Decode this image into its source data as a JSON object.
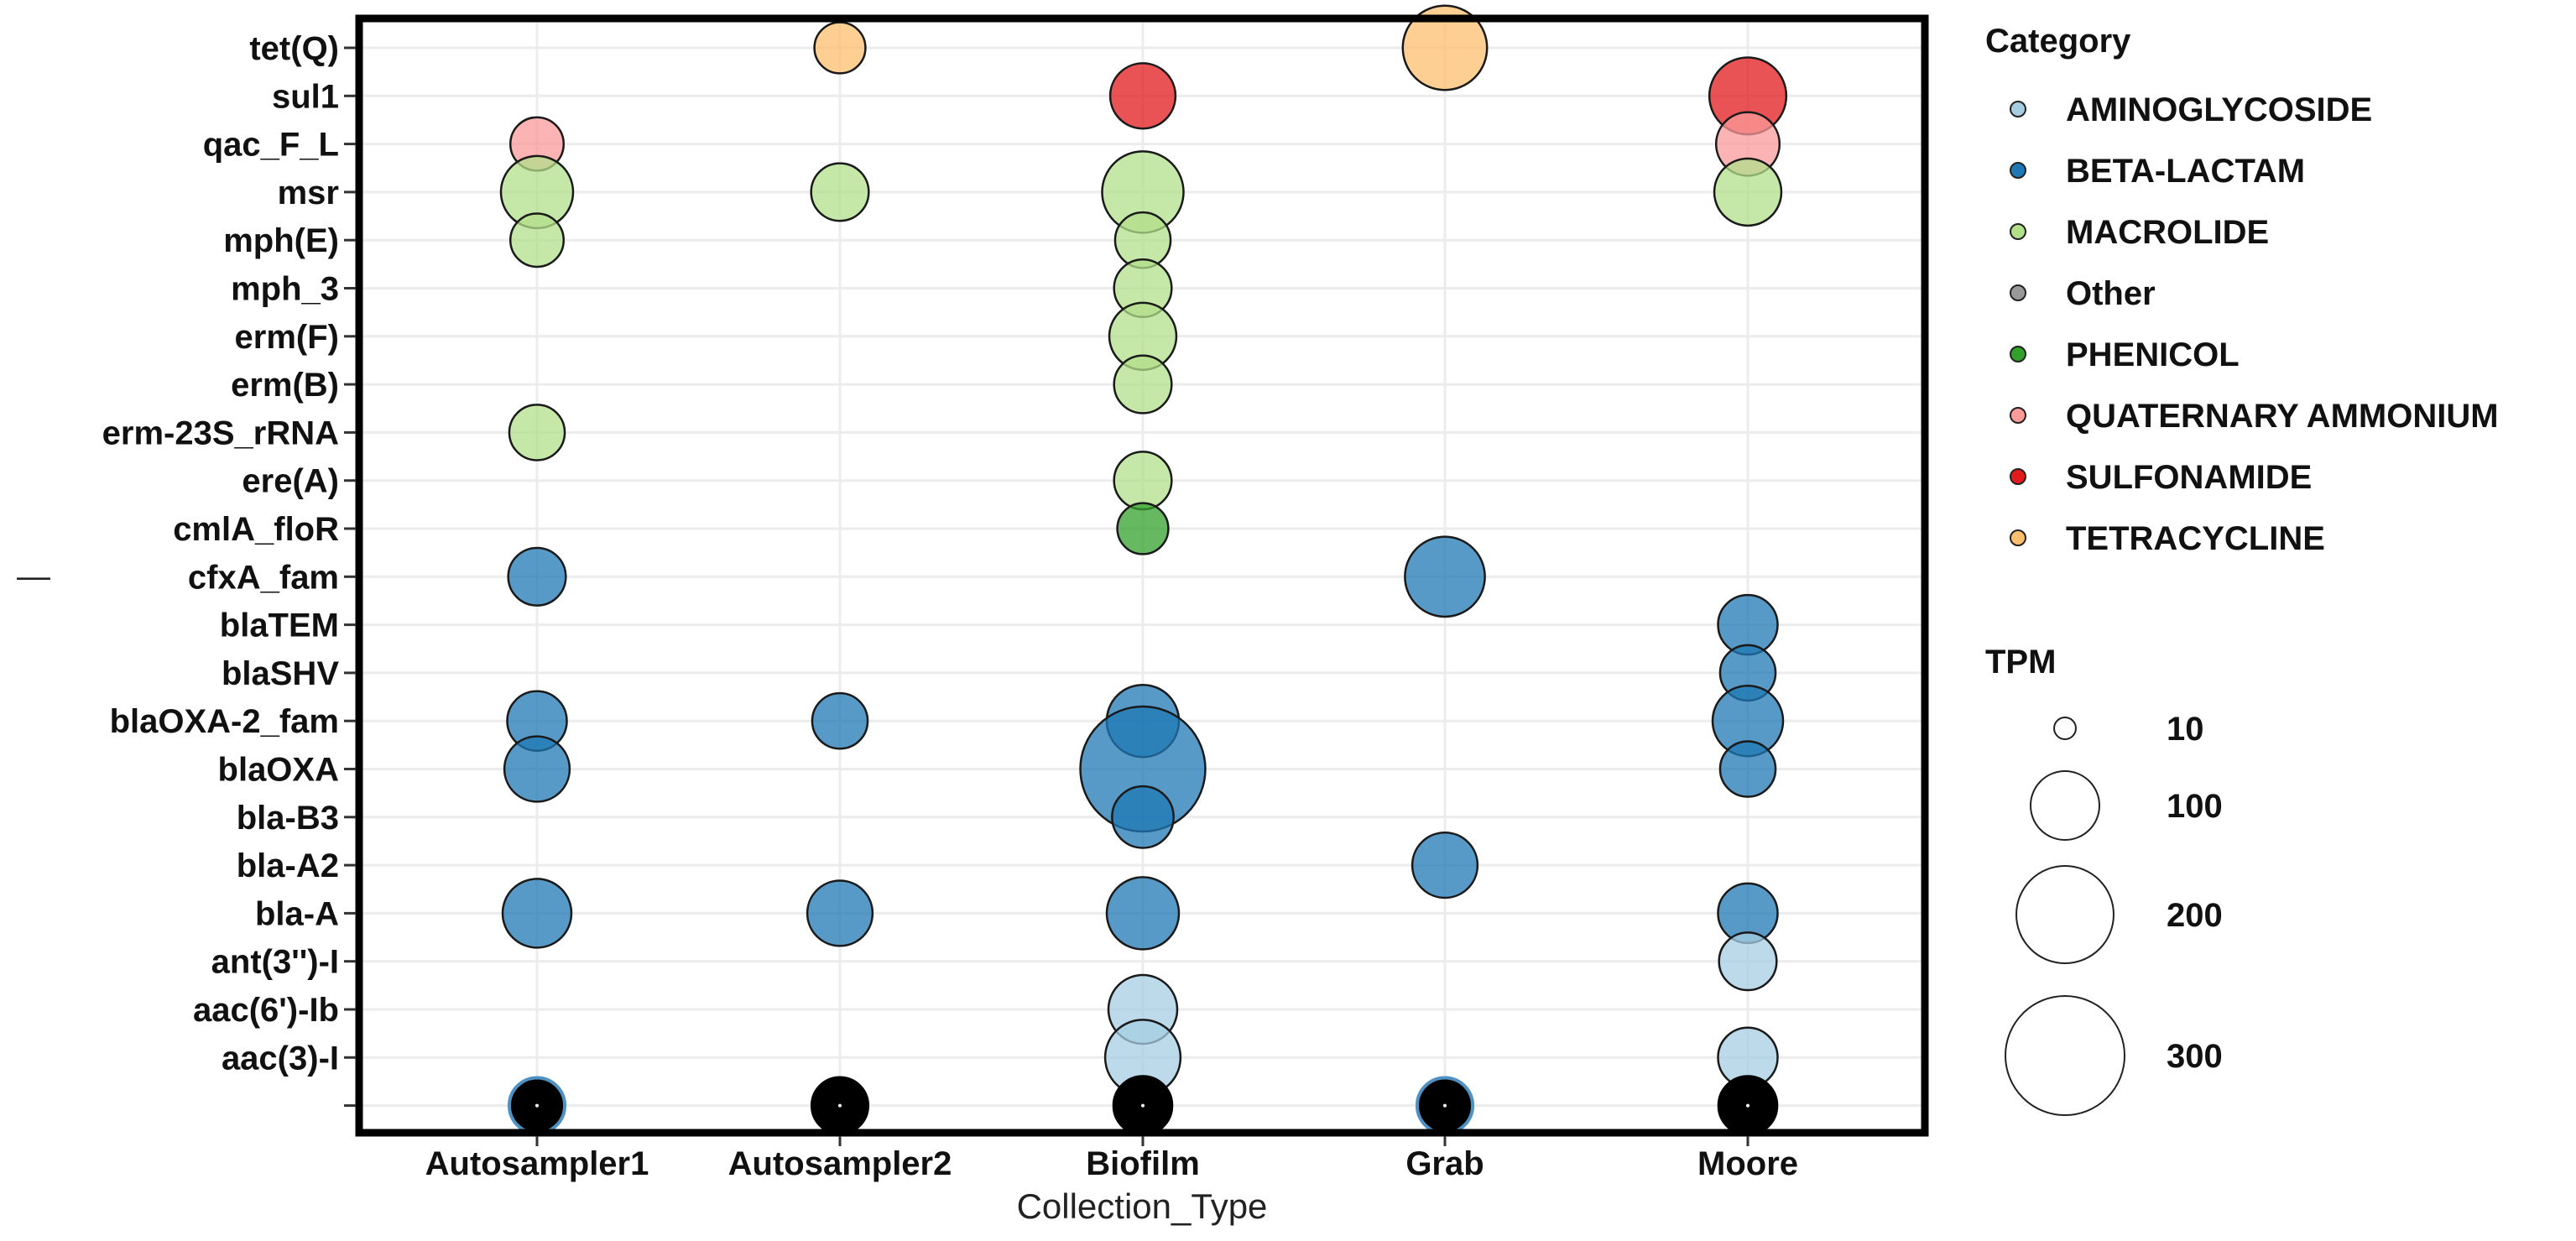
{
  "chart_data": {
    "type": "scatter",
    "subtype": "bubble",
    "xlabel": "Collection_Type",
    "ylabel": "",
    "ylabel_glyph": "—",
    "x_categories": [
      "Autosampler1",
      "Autosampler2",
      "Biofilm",
      "Grab",
      "Moore"
    ],
    "y_categories": [
      "",
      "aac(3)-I",
      "aac(6')-Ib",
      "ant(3'')-I",
      "bla-A",
      "bla-A2",
      "bla-B3",
      "blaOXA",
      "blaOXA-2_fam",
      "blaSHV",
      "blaTEM",
      "cfxA_fam",
      "cmlA_floR",
      "ere(A)",
      "erm-23S_rRNA",
      "erm(B)",
      "erm(F)",
      "mph_3",
      "mph(E)",
      "msr",
      "qac_F_L",
      "sul1",
      "tet(Q)"
    ],
    "colors": {
      "AMINOGLYCOSIDE": "#A6CEE3",
      "BETA-LACTAM": "#1F78B4",
      "MACROLIDE": "#B2DF8A",
      "Other": "#999999",
      "PHENICOL": "#33A02C",
      "QUATERNARY AMMONIUM": "#FB9A99",
      "SULFONAMIDE": "#E31A1C",
      "TETRACYCLINE": "#FDBF6F"
    },
    "grid": true,
    "legend_position": "right",
    "legend": {
      "category_title": "Category",
      "category_entries": [
        "AMINOGLYCOSIDE",
        "BETA-LACTAM",
        "MACROLIDE",
        "Other",
        "PHENICOL",
        "QUATERNARY AMMONIUM",
        "SULFONAMIDE",
        "TETRACYCLINE"
      ],
      "size_title": "TPM",
      "size_entries": [
        10,
        100,
        200,
        300
      ]
    },
    "points": [
      {
        "x": "Autosampler2",
        "y": "tet(Q)",
        "category": "TETRACYCLINE",
        "tpm": 55
      },
      {
        "x": "Grab",
        "y": "tet(Q)",
        "category": "TETRACYCLINE",
        "tpm": 150
      },
      {
        "x": "Biofilm",
        "y": "sul1",
        "category": "SULFONAMIDE",
        "tpm": 90
      },
      {
        "x": "Moore",
        "y": "sul1",
        "category": "SULFONAMIDE",
        "tpm": 125
      },
      {
        "x": "Autosampler1",
        "y": "qac_F_L",
        "category": "QUATERNARY AMMONIUM",
        "tpm": 60
      },
      {
        "x": "Moore",
        "y": "qac_F_L",
        "category": "QUATERNARY AMMONIUM",
        "tpm": 85
      },
      {
        "x": "Autosampler1",
        "y": "msr",
        "category": "MACROLIDE",
        "tpm": 110
      },
      {
        "x": "Autosampler2",
        "y": "msr",
        "category": "MACROLIDE",
        "tpm": 70
      },
      {
        "x": "Biofilm",
        "y": "msr",
        "category": "MACROLIDE",
        "tpm": 140
      },
      {
        "x": "Moore",
        "y": "msr",
        "category": "MACROLIDE",
        "tpm": 95
      },
      {
        "x": "Autosampler1",
        "y": "mph(E)",
        "category": "MACROLIDE",
        "tpm": 60
      },
      {
        "x": "Biofilm",
        "y": "mph(E)",
        "category": "MACROLIDE",
        "tpm": 65
      },
      {
        "x": "Biofilm",
        "y": "mph_3",
        "category": "MACROLIDE",
        "tpm": 70
      },
      {
        "x": "Biofilm",
        "y": "erm(F)",
        "category": "MACROLIDE",
        "tpm": 95
      },
      {
        "x": "Biofilm",
        "y": "erm(B)",
        "category": "MACROLIDE",
        "tpm": 70
      },
      {
        "x": "Autosampler1",
        "y": "erm-23S_rRNA",
        "category": "MACROLIDE",
        "tpm": 65
      },
      {
        "x": "Biofilm",
        "y": "ere(A)",
        "category": "MACROLIDE",
        "tpm": 70
      },
      {
        "x": "Biofilm",
        "y": "cmlA_floR",
        "category": "PHENICOL",
        "tpm": 55
      },
      {
        "x": "Autosampler1",
        "y": "cfxA_fam",
        "category": "BETA-LACTAM",
        "tpm": 70
      },
      {
        "x": "Grab",
        "y": "cfxA_fam",
        "category": "BETA-LACTAM",
        "tpm": 135
      },
      {
        "x": "Moore",
        "y": "blaTEM",
        "category": "BETA-LACTAM",
        "tpm": 75
      },
      {
        "x": "Moore",
        "y": "blaSHV",
        "category": "BETA-LACTAM",
        "tpm": 65
      },
      {
        "x": "Autosampler1",
        "y": "blaOXA-2_fam",
        "category": "BETA-LACTAM",
        "tpm": 75
      },
      {
        "x": "Autosampler2",
        "y": "blaOXA-2_fam",
        "category": "BETA-LACTAM",
        "tpm": 65
      },
      {
        "x": "Biofilm",
        "y": "blaOXA-2_fam",
        "category": "BETA-LACTAM",
        "tpm": 110
      },
      {
        "x": "Moore",
        "y": "blaOXA-2_fam",
        "category": "BETA-LACTAM",
        "tpm": 105
      },
      {
        "x": "Autosampler1",
        "y": "blaOXA",
        "category": "BETA-LACTAM",
        "tpm": 90
      },
      {
        "x": "Biofilm",
        "y": "blaOXA",
        "category": "BETA-LACTAM",
        "tpm": 330
      },
      {
        "x": "Moore",
        "y": "blaOXA",
        "category": "BETA-LACTAM",
        "tpm": 65
      },
      {
        "x": "Biofilm",
        "y": "bla-B3",
        "category": "BETA-LACTAM",
        "tpm": 80
      },
      {
        "x": "Grab",
        "y": "bla-A2",
        "category": "BETA-LACTAM",
        "tpm": 90
      },
      {
        "x": "Autosampler1",
        "y": "bla-A",
        "category": "BETA-LACTAM",
        "tpm": 100
      },
      {
        "x": "Autosampler2",
        "y": "bla-A",
        "category": "BETA-LACTAM",
        "tpm": 90
      },
      {
        "x": "Biofilm",
        "y": "bla-A",
        "category": "BETA-LACTAM",
        "tpm": 110
      },
      {
        "x": "Moore",
        "y": "bla-A",
        "category": "BETA-LACTAM",
        "tpm": 75
      },
      {
        "x": "Moore",
        "y": "ant(3'')-I",
        "category": "AMINOGLYCOSIDE",
        "tpm": 70
      },
      {
        "x": "Biofilm",
        "y": "aac(6')-Ib",
        "category": "AMINOGLYCOSIDE",
        "tpm": 100
      },
      {
        "x": "Biofilm",
        "y": "aac(3)-I",
        "category": "AMINOGLYCOSIDE",
        "tpm": 120
      },
      {
        "x": "Moore",
        "y": "aac(3)-I",
        "category": "AMINOGLYCOSIDE",
        "tpm": 75
      },
      {
        "x": "Autosampler1",
        "y": "",
        "category": "Other",
        "tpm": 65,
        "fill": "#000000",
        "ring": "#4E91C2"
      },
      {
        "x": "Autosampler2",
        "y": "",
        "category": "Other",
        "tpm": 65,
        "fill": "#000000",
        "ring": "#000000"
      },
      {
        "x": "Biofilm",
        "y": "",
        "category": "Other",
        "tpm": 70,
        "fill": "#000000",
        "ring": "#000000"
      },
      {
        "x": "Grab",
        "y": "",
        "category": "Other",
        "tpm": 65,
        "fill": "#000000",
        "ring": "#4E91C2"
      },
      {
        "x": "Moore",
        "y": "",
        "category": "Other",
        "tpm": 70,
        "fill": "#000000",
        "ring": "#000000"
      }
    ]
  }
}
